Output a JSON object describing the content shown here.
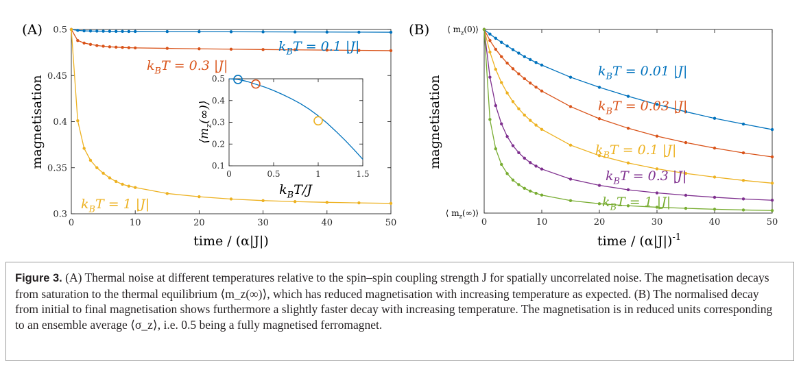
{
  "figure": {
    "caption_label": "Figure 3.",
    "caption_text": "(A) Thermal noise at different temperatures relative to the spin–spin coupling strength J for spatially uncorrelated noise. The magnetisation decays from saturation to the thermal equilibrium ⟨m_z(∞)⟩, which has reduced magnetisation with increasing temperature as expected.  (B) The normalised decay from initial to final magnetisation shows furthermore a slightly faster decay with increasing temperature. The magnetisation is in reduced units corresponding to an ensemble average ⟨σ_z⟩, i.e. 0.5 being a fully magnetised ferromagnet."
  },
  "colors": {
    "blue": "#0072BD",
    "orange": "#D95319",
    "yellow": "#EDB120",
    "purple": "#7E2F8E",
    "green": "#77AC30"
  },
  "chart_data": [
    {
      "panel": "(A)",
      "type": "line",
      "xlabel": "time / (α|J|)",
      "ylabel": "magnetisation",
      "xlim": [
        0,
        50
      ],
      "ylim": [
        0.3,
        0.5
      ],
      "xticks": [
        0,
        10,
        20,
        30,
        40,
        50
      ],
      "yticks": [
        0.3,
        0.35,
        0.4,
        0.45,
        0.5
      ],
      "series": [
        {
          "name": "k_BT = 0.1 |J|",
          "color": "#0072BD",
          "x": [
            0,
            1,
            2,
            3,
            4,
            5,
            6,
            7,
            8,
            9,
            10,
            15,
            20,
            25,
            30,
            35,
            40,
            45,
            50
          ],
          "y": [
            0.5,
            0.499,
            0.4985,
            0.4983,
            0.4982,
            0.4981,
            0.498,
            0.4979,
            0.4979,
            0.4978,
            0.4978,
            0.4977,
            0.4976,
            0.4975,
            0.4974,
            0.4973,
            0.4972,
            0.4971,
            0.497
          ]
        },
        {
          "name": "k_BT = 0.3 |J|",
          "color": "#D95319",
          "x": [
            0,
            1,
            2,
            3,
            4,
            5,
            6,
            7,
            8,
            9,
            10,
            15,
            20,
            25,
            30,
            35,
            40,
            45,
            50
          ],
          "y": [
            0.5,
            0.488,
            0.4853,
            0.4838,
            0.4826,
            0.4818,
            0.4812,
            0.4808,
            0.4805,
            0.4802,
            0.48,
            0.4795,
            0.479,
            0.4786,
            0.4782,
            0.4779,
            0.4776,
            0.4773,
            0.477
          ]
        },
        {
          "name": "k_BT = 1 |J|",
          "color": "#EDB120",
          "x": [
            0,
            1,
            2,
            3,
            4,
            5,
            6,
            7,
            8,
            9,
            10,
            15,
            20,
            25,
            30,
            35,
            40,
            45,
            50
          ],
          "y": [
            0.5,
            0.401,
            0.371,
            0.358,
            0.35,
            0.344,
            0.339,
            0.335,
            0.332,
            0.33,
            0.3285,
            0.322,
            0.3185,
            0.316,
            0.3143,
            0.3132,
            0.3124,
            0.3118,
            0.3113
          ]
        }
      ],
      "inset": {
        "type": "line",
        "xlabel": "k_BT/J",
        "ylabel": "⟨m_z(∞)⟩",
        "xlim": [
          0,
          1.5
        ],
        "ylim": [
          0.1,
          0.5
        ],
        "xticks": [
          0,
          0.5,
          1,
          1.5
        ],
        "yticks": [
          0.1,
          0.2,
          0.3,
          0.4,
          0.5
        ],
        "curve": {
          "x": [
            0,
            0.1,
            0.2,
            0.3,
            0.4,
            0.5,
            0.6,
            0.7,
            0.8,
            0.9,
            1.0,
            1.1,
            1.2,
            1.3,
            1.4,
            1.5
          ],
          "y": [
            0.5,
            0.497,
            0.488,
            0.475,
            0.462,
            0.446,
            0.428,
            0.408,
            0.386,
            0.36,
            0.33,
            0.296,
            0.258,
            0.218,
            0.175,
            0.13
          ]
        },
        "markers": [
          {
            "x": 0.1,
            "y": 0.497,
            "color": "#0072BD"
          },
          {
            "x": 0.3,
            "y": 0.476,
            "color": "#D95319"
          },
          {
            "x": 1.0,
            "y": 0.307,
            "color": "#EDB120"
          }
        ]
      }
    },
    {
      "panel": "(B)",
      "type": "line",
      "xlabel": "time / (α|J|)^-1",
      "ylabel": "magnetisation",
      "xlim": [
        0,
        50
      ],
      "ylim": [
        0,
        1
      ],
      "xticks": [
        0,
        10,
        20,
        30,
        40,
        50
      ],
      "ytick_labels": [
        "⟨ m_z(0)⟩",
        "⟨ m_z(∞)⟩"
      ],
      "series": [
        {
          "name": "k_BT = 0.01 |J|",
          "color": "#0072BD",
          "x": [
            0,
            1,
            2,
            3,
            4,
            5,
            6,
            7,
            8,
            9,
            10,
            15,
            20,
            25,
            30,
            35,
            40,
            45,
            50
          ],
          "y": [
            1,
            0.975,
            0.952,
            0.93,
            0.91,
            0.89,
            0.871,
            0.852,
            0.836,
            0.82,
            0.806,
            0.74,
            0.685,
            0.636,
            0.592,
            0.552,
            0.516,
            0.485,
            0.455
          ]
        },
        {
          "name": "k_BT = 0.03 |J|",
          "color": "#D95319",
          "x": [
            0,
            1,
            2,
            3,
            4,
            5,
            6,
            7,
            8,
            9,
            10,
            15,
            20,
            25,
            30,
            35,
            40,
            45,
            50
          ],
          "y": [
            1,
            0.94,
            0.892,
            0.852,
            0.817,
            0.786,
            0.758,
            0.732,
            0.708,
            0.686,
            0.665,
            0.58,
            0.514,
            0.462,
            0.419,
            0.384,
            0.354,
            0.328,
            0.306
          ]
        },
        {
          "name": "k_BT = 0.1 |J|",
          "color": "#EDB120",
          "x": [
            0,
            1,
            2,
            3,
            4,
            5,
            6,
            7,
            8,
            9,
            10,
            15,
            20,
            25,
            30,
            35,
            40,
            45,
            50
          ],
          "y": [
            1,
            0.877,
            0.783,
            0.711,
            0.654,
            0.607,
            0.568,
            0.534,
            0.505,
            0.479,
            0.456,
            0.37,
            0.313,
            0.273,
            0.241,
            0.216,
            0.196,
            0.178,
            0.163
          ]
        },
        {
          "name": "k_BT = 0.3 |J|",
          "color": "#7E2F8E",
          "x": [
            0,
            1,
            2,
            3,
            4,
            5,
            6,
            7,
            8,
            9,
            10,
            15,
            20,
            25,
            30,
            35,
            40,
            45,
            50
          ],
          "y": [
            1,
            0.74,
            0.585,
            0.486,
            0.417,
            0.367,
            0.329,
            0.299,
            0.275,
            0.256,
            0.24,
            0.185,
            0.151,
            0.127,
            0.11,
            0.097,
            0.086,
            0.077,
            0.07
          ]
        },
        {
          "name": "k_BT = 1 |J|",
          "color": "#77AC30",
          "x": [
            0,
            1,
            2,
            3,
            4,
            5,
            6,
            7,
            8,
            9,
            10,
            15,
            20,
            25,
            30,
            35,
            40,
            45,
            50
          ],
          "y": [
            1,
            0.51,
            0.35,
            0.265,
            0.215,
            0.18,
            0.155,
            0.135,
            0.12,
            0.108,
            0.098,
            0.068,
            0.051,
            0.04,
            0.032,
            0.026,
            0.021,
            0.017,
            0.014
          ]
        }
      ]
    }
  ]
}
